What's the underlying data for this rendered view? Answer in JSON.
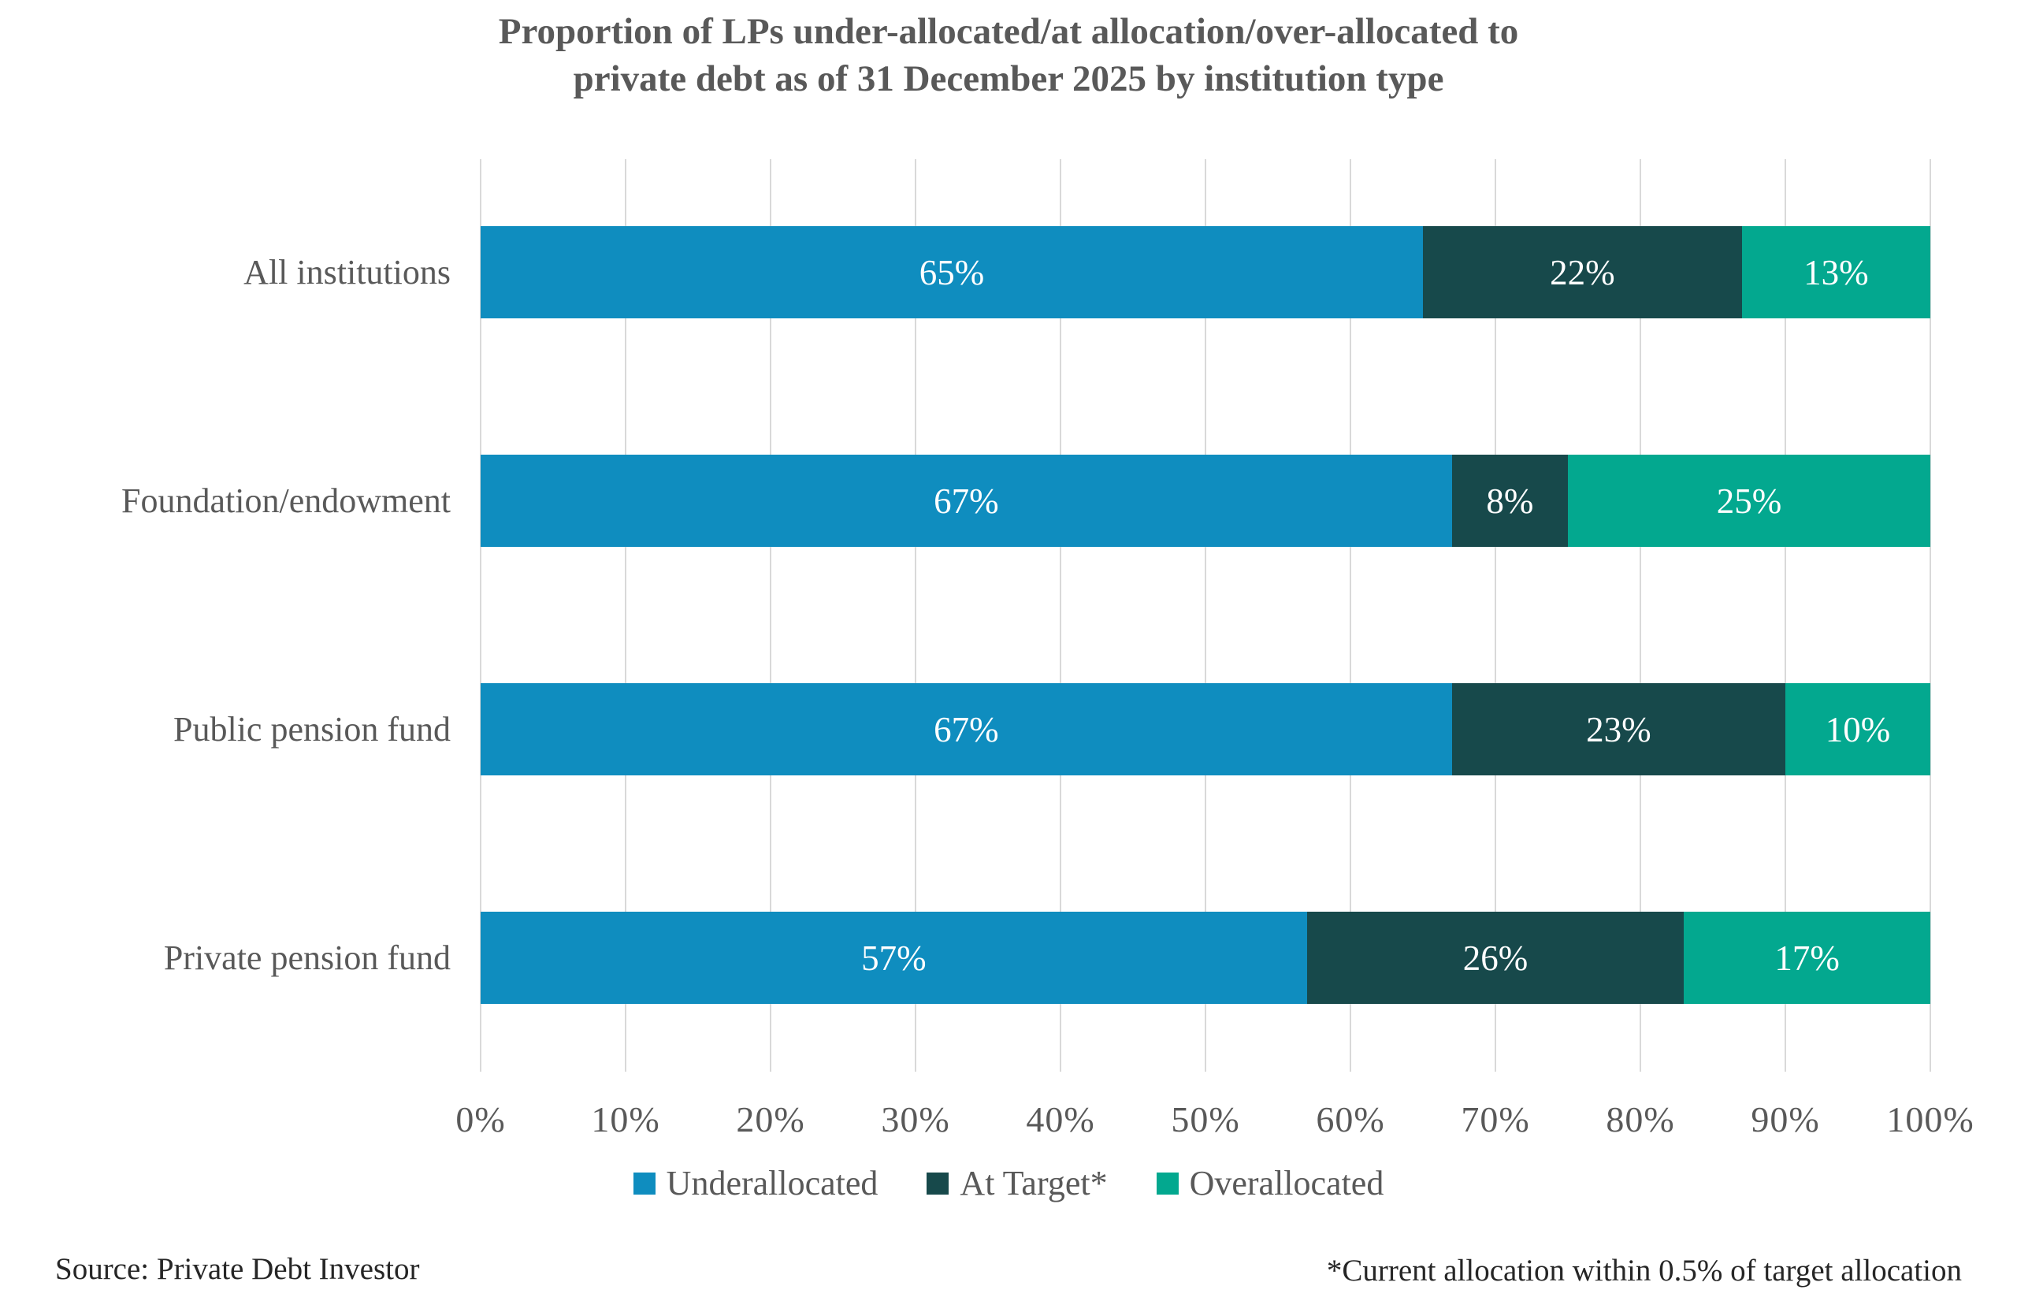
{
  "title": {
    "line1": "Proportion of LPs under-allocated/at allocation/over-allocated to",
    "line2": "private debt as of 31 December 2025 by institution type"
  },
  "chart_data": {
    "type": "bar",
    "orientation": "horizontal",
    "stacked": true,
    "title": "Proportion of LPs under-allocated/at allocation/over-allocated to private debt as of 31 December 2025 by institution type",
    "categories": [
      "All institutions",
      "Foundation/endowment",
      "Public pension fund",
      "Private pension fund"
    ],
    "series": [
      {
        "name": "Underallocated",
        "color": "#0F8DBF",
        "values": [
          65,
          67,
          67,
          57
        ]
      },
      {
        "name": "At Target*",
        "color": "#17494B",
        "values": [
          22,
          8,
          23,
          26
        ]
      },
      {
        "name": "Overallocated",
        "color": "#03A88F",
        "values": [
          13,
          25,
          10,
          17
        ]
      }
    ],
    "value_suffix": "%",
    "xlim": [
      0,
      100
    ],
    "x_ticks": [
      "0%",
      "10%",
      "20%",
      "30%",
      "40%",
      "50%",
      "60%",
      "70%",
      "80%",
      "90%",
      "100%"
    ],
    "grid": "vertical",
    "gridline_color": "#d9d9d9",
    "legend_position": "bottom",
    "label_color": "#595959",
    "value_label_color": "#ffffff"
  },
  "footer": {
    "source": "Source: Private Debt Investor",
    "footnote": "*Current allocation within 0.5% of target allocation"
  }
}
